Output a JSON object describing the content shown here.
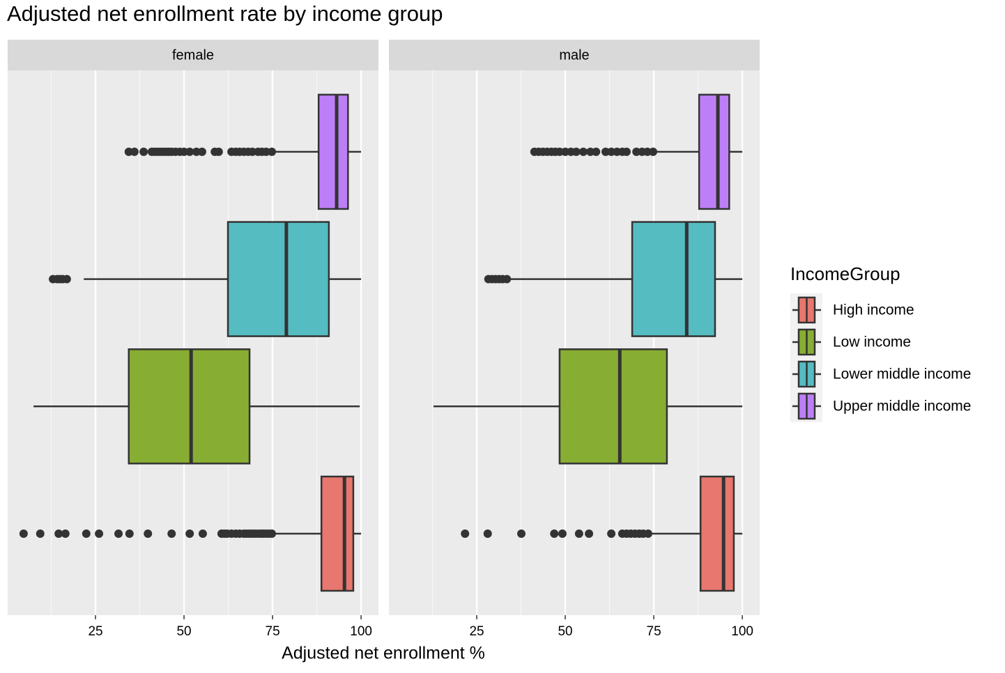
{
  "chart_data": {
    "type": "boxplot",
    "title": "Adjusted net enrollment rate by income group",
    "x_label": "Adjusted net enrollment %",
    "legend_title": "IncomeGroup",
    "xlim": [
      0.2,
      104.9
    ],
    "xticks": [
      25,
      50,
      75,
      100
    ],
    "minor_xticks": [
      12.5,
      37.5,
      62.5,
      87.5
    ],
    "grid": true,
    "series": [
      {
        "name": "High income",
        "color": "#E8776F"
      },
      {
        "name": "Low income",
        "color": "#88AD33"
      },
      {
        "name": "Lower middle income",
        "color": "#55BCC2"
      },
      {
        "name": "Upper middle income",
        "color": "#BD7FF7"
      }
    ],
    "facets": [
      {
        "name": "female",
        "boxes": [
          {
            "min": 75.4,
            "q1": 88.8,
            "median": 95.3,
            "q3": 97.8,
            "max": 100,
            "outliers": [
              4.7,
              9.4,
              14.6,
              16.5,
              22.4,
              26.0,
              31.5,
              34.6,
              39.8,
              46.5,
              51.6,
              55.3,
              60.6,
              61.4,
              62.2,
              63.4,
              64.6,
              65.7,
              66.9,
              67.7,
              68.5,
              69.3,
              70.1,
              70.9,
              71.7,
              72.4,
              73.2,
              74.0,
              74.8
            ]
          },
          {
            "min": 7.5,
            "q1": 34.4,
            "median": 52.0,
            "q3": 68.5,
            "max": 99.6,
            "outliers": []
          },
          {
            "min": 21.7,
            "q1": 62.4,
            "median": 78.9,
            "q3": 90.9,
            "max": 100,
            "outliers": [
              13.0,
              14.2,
              15.0,
              15.7,
              16.9
            ]
          },
          {
            "min": 75.2,
            "q1": 88.0,
            "median": 93.1,
            "q3": 96.3,
            "max": 100,
            "outliers": [
              34.4,
              36.0,
              38.6,
              40.9,
              41.7,
              42.5,
              43.3,
              44.1,
              44.9,
              45.7,
              46.5,
              47.6,
              48.8,
              50.0,
              51.6,
              53.5,
              55.1,
              58.7,
              59.8,
              63.4,
              64.6,
              65.7,
              66.9,
              68.1,
              69.3,
              70.9,
              72.0,
              73.2,
              74.8
            ]
          }
        ]
      },
      {
        "name": "male",
        "boxes": [
          {
            "min": 74.4,
            "q1": 88.2,
            "median": 94.7,
            "q3": 97.6,
            "max": 100,
            "outliers": [
              21.7,
              28.1,
              37.6,
              46.9,
              49.2,
              53.9,
              56.7,
              63.0,
              66.1,
              67.3,
              68.5,
              69.7,
              70.9,
              72.0,
              73.4
            ]
          },
          {
            "min": 12.8,
            "q1": 48.4,
            "median": 65.4,
            "q3": 78.7,
            "max": 100,
            "outliers": []
          },
          {
            "min": 34.6,
            "q1": 68.9,
            "median": 84.3,
            "q3": 92.3,
            "max": 100,
            "outliers": [
              28.3,
              29.3,
              30.3,
              31.3,
              32.3,
              33.5
            ]
          },
          {
            "min": 75.4,
            "q1": 87.8,
            "median": 93.1,
            "q3": 96.3,
            "max": 100,
            "outliers": [
              41.3,
              42.5,
              43.7,
              44.9,
              46.1,
              47.2,
              48.4,
              50.0,
              51.6,
              53.1,
              55.1,
              57.1,
              58.7,
              61.4,
              63.0,
              64.6,
              66.1,
              67.3,
              70.1,
              71.7,
              73.2,
              74.8
            ]
          }
        ]
      }
    ]
  }
}
